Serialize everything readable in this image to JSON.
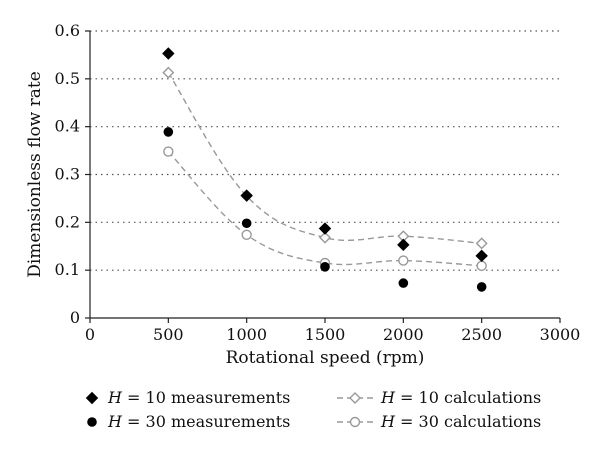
{
  "chart_data": {
    "type": "scatter",
    "title": "",
    "xlabel": "Rotational speed (rpm)",
    "ylabel": "Dimensionless flow rate",
    "xlim": [
      0,
      3000
    ],
    "ylim": [
      0,
      0.6
    ],
    "x_ticks": [
      0,
      500,
      1000,
      1500,
      2000,
      2500,
      3000
    ],
    "y_ticks": [
      0,
      0.1,
      0.2,
      0.3,
      0.4,
      0.5,
      0.6
    ],
    "grid": {
      "y": true,
      "x": false,
      "style": "dotted"
    },
    "legend_position": "bottom",
    "series": [
      {
        "name": "H = 10 measurements",
        "name_var": "H",
        "name_rest": " = 10 measurements",
        "marker": "diamond-filled",
        "line": "none",
        "color": "#000000",
        "points": [
          [
            500,
            0.553
          ],
          [
            1000,
            0.256
          ],
          [
            1500,
            0.187
          ],
          [
            2000,
            0.153
          ],
          [
            2500,
            0.13
          ]
        ]
      },
      {
        "name": "H = 30 measurements",
        "name_var": "H",
        "name_rest": " = 30 measurements",
        "marker": "circle-filled",
        "line": "none",
        "color": "#000000",
        "points": [
          [
            500,
            0.389
          ],
          [
            1000,
            0.198
          ],
          [
            1500,
            0.107
          ],
          [
            2000,
            0.073
          ],
          [
            2500,
            0.065
          ]
        ]
      },
      {
        "name": "H = 10 calculations",
        "name_var": "H",
        "name_rest": " = 10 calculations",
        "marker": "diamond-open",
        "line": "dashed",
        "color": "#999999",
        "points": [
          [
            500,
            0.513
          ],
          [
            1000,
            0.255
          ],
          [
            1500,
            0.168
          ],
          [
            2000,
            0.171
          ],
          [
            2500,
            0.156
          ]
        ]
      },
      {
        "name": "H = 30 calculations",
        "name_var": "H",
        "name_rest": " = 30 calculations",
        "marker": "circle-open",
        "line": "dashed",
        "color": "#999999",
        "points": [
          [
            500,
            0.348
          ],
          [
            1000,
            0.174
          ],
          [
            1500,
            0.115
          ],
          [
            2000,
            0.12
          ],
          [
            2500,
            0.109
          ]
        ]
      }
    ]
  }
}
